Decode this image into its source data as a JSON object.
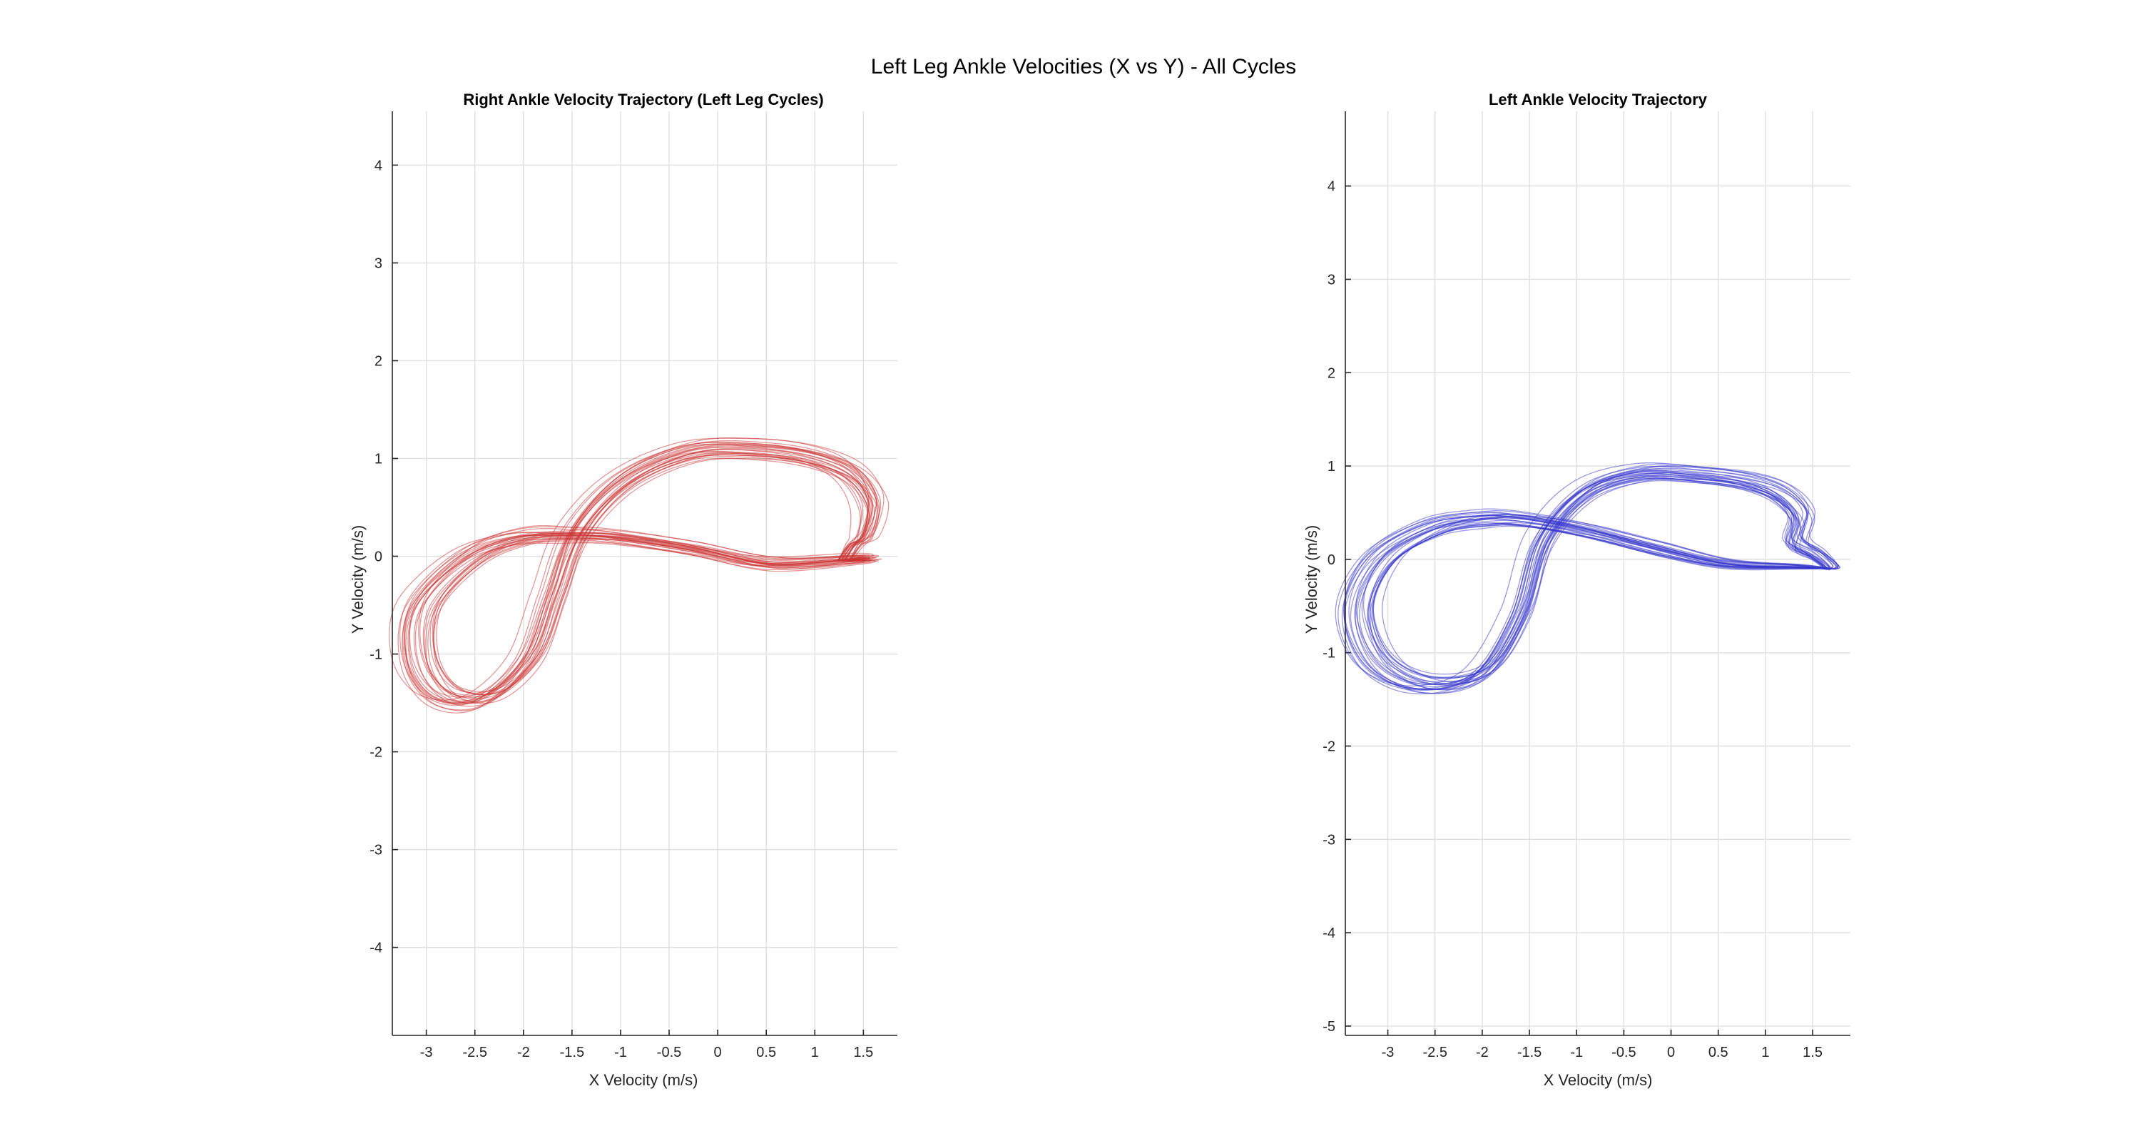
{
  "figure": {
    "suptitle": "Left Leg Ankle Velocities (X vs Y) - All Cycles"
  },
  "chart_data": [
    {
      "type": "line",
      "title": "Right Ankle Velocity Trajectory (Left Leg Cycles)",
      "xlabel": "X Velocity (m/s)",
      "ylabel": "Y Velocity (m/s)",
      "xlim": [
        -3.35,
        1.85
      ],
      "ylim": [
        -4.9,
        4.55
      ],
      "xticks": [
        -3,
        -2.5,
        -2,
        -1.5,
        -1,
        -0.5,
        0,
        0.5,
        1,
        1.5
      ],
      "xtick_labels": [
        "-3",
        "-2.5",
        "-2",
        "-1.5",
        "-1",
        "-0.5",
        "0",
        "0.5",
        "1",
        "1.5"
      ],
      "yticks": [
        -4,
        -3,
        -2,
        -1,
        0,
        1,
        2,
        3,
        4
      ],
      "ytick_labels": [
        "-4",
        "-3",
        "-2",
        "-1",
        "0",
        "1",
        "2",
        "3",
        "4"
      ],
      "grid": true,
      "color": "#cc3333",
      "cycle_count": 26,
      "mean_path": {
        "x": [
          1.3,
          1.55,
          1.35,
          0.5,
          -0.3,
          -1.1,
          -1.55,
          -2.05,
          -2.6,
          -3.1,
          -3.15,
          -2.9,
          -2.45,
          -2.0,
          -1.75,
          -1.5,
          -1.0,
          -0.3,
          0.4,
          0.95,
          1.35,
          1.55,
          1.5,
          1.4,
          1.3
        ],
        "y": [
          -0.05,
          -0.02,
          -0.03,
          -0.07,
          0.08,
          0.2,
          0.22,
          0.2,
          0.0,
          -0.5,
          -1.05,
          -1.42,
          -1.45,
          -1.05,
          -0.4,
          0.25,
          0.78,
          1.08,
          1.1,
          1.02,
          0.85,
          0.55,
          0.22,
          0.12,
          -0.05
        ]
      }
    },
    {
      "type": "line",
      "title": "Left Ankle Velocity Trajectory",
      "xlabel": "X Velocity (m/s)",
      "ylabel": "Y Velocity (m/s)",
      "xlim": [
        -3.45,
        1.9
      ],
      "ylim": [
        -5.1,
        4.8
      ],
      "xticks": [
        -3,
        -2.5,
        -2,
        -1.5,
        -1,
        -0.5,
        0,
        0.5,
        1,
        1.5
      ],
      "xtick_labels": [
        "-3",
        "-2.5",
        "-2",
        "-1.5",
        "-1",
        "-0.5",
        "0",
        "0.5",
        "1",
        "1.5"
      ],
      "yticks": [
        -5,
        -4,
        -3,
        -2,
        -1,
        0,
        1,
        2,
        3,
        4
      ],
      "ytick_labels": [
        "-5",
        "-4",
        "-3",
        "-2",
        "-1",
        "0",
        "1",
        "2",
        "3",
        "4"
      ],
      "grid": true,
      "color": "#3333cc",
      "cycle_count": 26,
      "mean_path": {
        "x": [
          1.65,
          1.35,
          0.6,
          -0.1,
          -0.9,
          -1.6,
          -2.0,
          -2.5,
          -3.05,
          -3.3,
          -3.1,
          -2.6,
          -2.0,
          -1.6,
          -1.35,
          -0.9,
          -0.3,
          0.3,
          0.85,
          1.2,
          1.4,
          1.35,
          1.55,
          1.7,
          1.65
        ],
        "y": [
          -0.1,
          -0.08,
          -0.05,
          0.1,
          0.3,
          0.42,
          0.42,
          0.33,
          0.0,
          -0.55,
          -1.1,
          -1.35,
          -1.22,
          -0.6,
          0.2,
          0.72,
          0.92,
          0.9,
          0.82,
          0.68,
          0.45,
          0.18,
          0.05,
          -0.08,
          -0.1
        ]
      }
    }
  ]
}
